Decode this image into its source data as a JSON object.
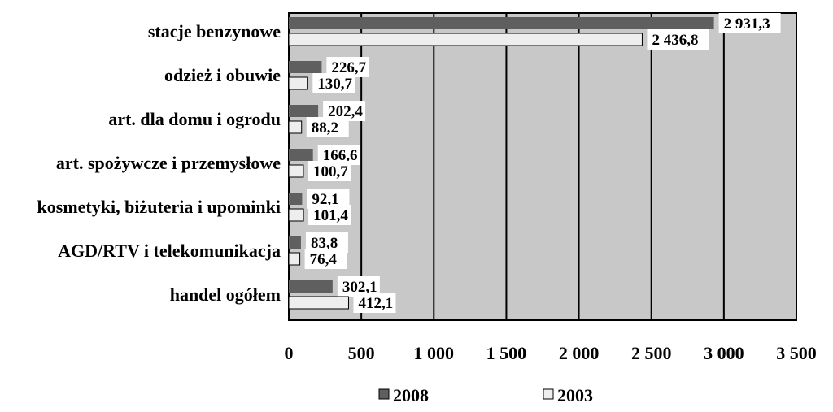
{
  "chart_data": {
    "type": "bar",
    "orientation": "horizontal",
    "categories": [
      "stacje benzynowe",
      "odzież i obuwie",
      "art. dla domu i ogrodu",
      "art. spożywcze i przemysłowe",
      "kosmetyki, biżuteria i upominki",
      "AGD/RTV i telekomunikacja",
      "handel ogółem"
    ],
    "series": [
      {
        "name": "2008",
        "values": [
          2931.3,
          226.7,
          202.4,
          166.6,
          92.1,
          83.8,
          302.1
        ],
        "labels": [
          "2 931,3",
          "226,7",
          "202,4",
          "166,6",
          "92,1",
          "83,8",
          "302,1"
        ],
        "color": "#5f5f5f"
      },
      {
        "name": "2003",
        "values": [
          2436.8,
          130.7,
          88.2,
          100.7,
          101.4,
          76.4,
          412.1
        ],
        "labels": [
          "2 436,8",
          "130,7",
          "88,2",
          "100,7",
          "101,4",
          "76,4",
          "412,1"
        ],
        "color": "#eeeeee"
      }
    ],
    "xlim": [
      0,
      3500
    ],
    "xticks": [
      0,
      500,
      1000,
      1500,
      2000,
      2500,
      3000,
      3500
    ],
    "xtick_labels": [
      "0",
      "500",
      "1 000",
      "1 500",
      "2 000",
      "2 500",
      "3 000",
      "3 500"
    ],
    "grid": true,
    "legend_position": "bottom",
    "plot_background": "#c8c8c8",
    "title": "",
    "xlabel": "",
    "ylabel": ""
  }
}
